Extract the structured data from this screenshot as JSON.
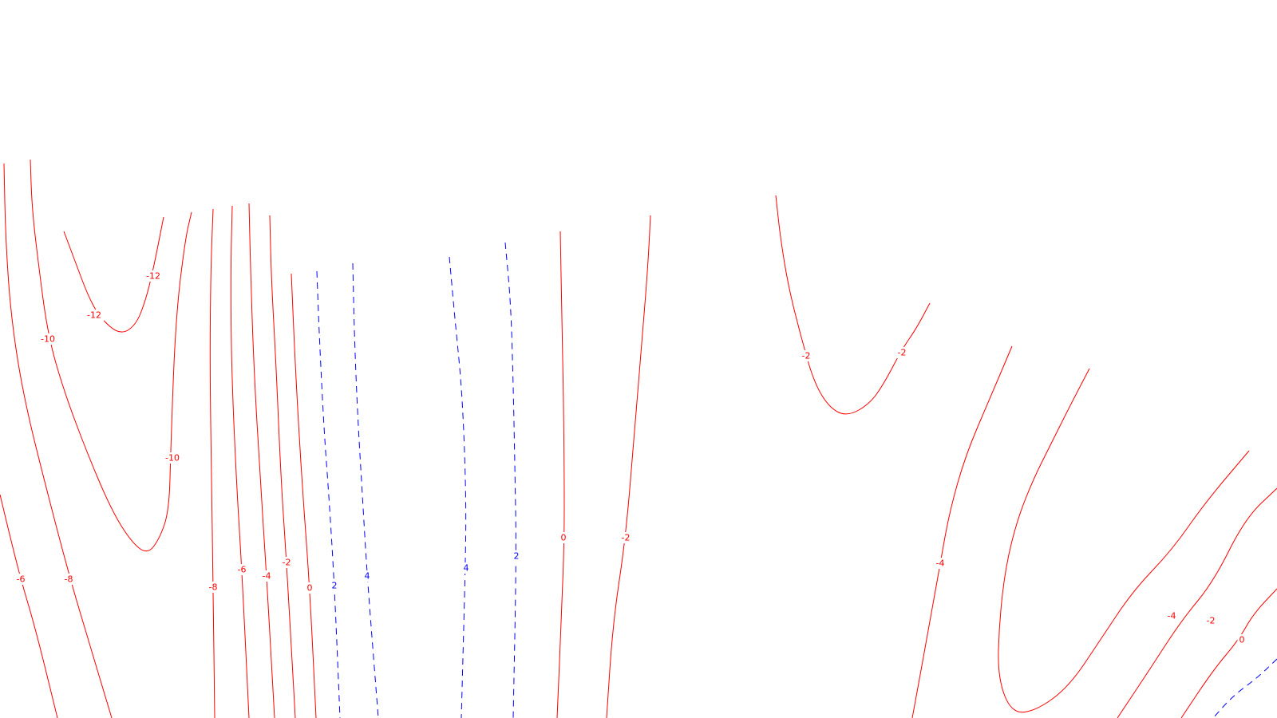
{
  "chart_data": {
    "type": "contour",
    "title": "",
    "xlabel": "",
    "ylabel": "",
    "colors": {
      "negative": "#ff0000",
      "positive": "#0000ff",
      "background": "#ffffff"
    },
    "levels": [
      {
        "id": "neg12-left",
        "level": -12,
        "sign": "negative",
        "labels": [
          "-12",
          "-12"
        ]
      },
      {
        "id": "neg10-left",
        "level": -10,
        "sign": "negative",
        "labels": [
          "-10",
          "-10"
        ]
      },
      {
        "id": "neg8-left",
        "level": -8,
        "sign": "negative",
        "labels": [
          "-8"
        ]
      },
      {
        "id": "neg6-left",
        "level": -6,
        "sign": "negative",
        "labels": [
          "-6"
        ]
      },
      {
        "id": "neg8-mid",
        "level": -8,
        "sign": "negative",
        "labels": [
          "-8"
        ]
      },
      {
        "id": "neg6-mid",
        "level": -6,
        "sign": "negative",
        "labels": [
          "-6"
        ]
      },
      {
        "id": "neg4-mid",
        "level": -4,
        "sign": "negative",
        "labels": [
          "-4"
        ]
      },
      {
        "id": "neg2-mid",
        "level": -2,
        "sign": "negative",
        "labels": [
          "-2"
        ]
      },
      {
        "id": "zero-a",
        "level": 0,
        "sign": "negative",
        "labels": [
          "0"
        ]
      },
      {
        "id": "pos2-a",
        "level": 2,
        "sign": "positive",
        "labels": [
          "2"
        ]
      },
      {
        "id": "pos4-a",
        "level": 4,
        "sign": "positive",
        "labels": [
          "4"
        ]
      },
      {
        "id": "pos4-b",
        "level": 4,
        "sign": "positive",
        "labels": [
          "4"
        ]
      },
      {
        "id": "pos2-b",
        "level": 2,
        "sign": "positive",
        "labels": [
          "2"
        ]
      },
      {
        "id": "zero-b",
        "level": 0,
        "sign": "negative",
        "labels": [
          "0"
        ]
      },
      {
        "id": "neg2-b",
        "level": -2,
        "sign": "negative",
        "labels": [
          "-2"
        ]
      },
      {
        "id": "neg2-right",
        "level": -2,
        "sign": "negative",
        "labels": [
          "-2",
          "-2"
        ]
      },
      {
        "id": "neg4-right",
        "level": -4,
        "sign": "negative",
        "labels": [
          "-4"
        ]
      },
      {
        "id": "neg4-far",
        "level": -4,
        "sign": "negative",
        "labels": [
          "-4"
        ]
      },
      {
        "id": "neg2-far",
        "level": -2,
        "sign": "negative",
        "labels": [
          "-2"
        ]
      },
      {
        "id": "zero-far",
        "level": 0,
        "sign": "negative",
        "labels": [
          "0"
        ]
      },
      {
        "id": "pos-far",
        "level": 2,
        "sign": "positive",
        "labels": []
      }
    ]
  }
}
